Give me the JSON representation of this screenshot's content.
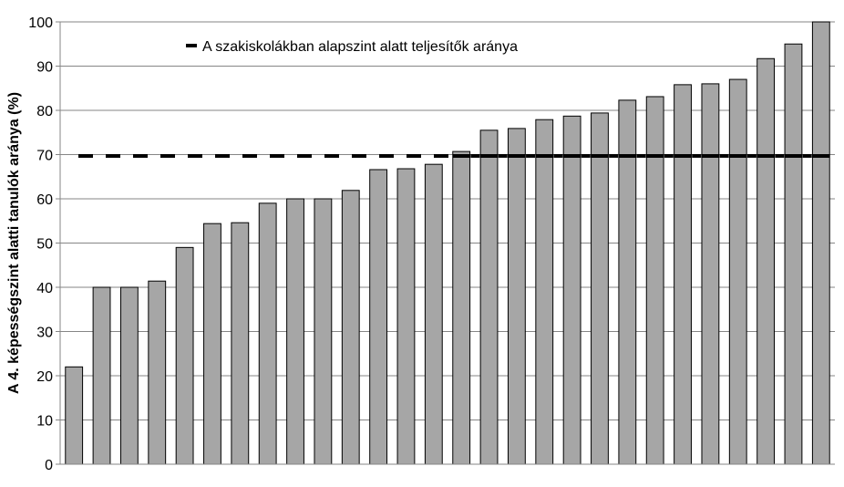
{
  "chart_data": {
    "type": "bar",
    "ylabel": "A 4. képességszint alatti tanulók aránya (%)",
    "xlabel": "",
    "ylim": [
      0,
      100
    ],
    "yticks": [
      0,
      10,
      20,
      30,
      40,
      50,
      60,
      70,
      80,
      90,
      100
    ],
    "grid": true,
    "legend_position": "top",
    "bar_color": "#a6a6a6",
    "series": [
      {
        "values": [
          22,
          40,
          40,
          41.4,
          49,
          54.4,
          54.6,
          59,
          60,
          60,
          61.9,
          66.6,
          66.8,
          67.8,
          70.7,
          75.5,
          75.9,
          77.9,
          78.7,
          79.4,
          82.3,
          83.1,
          85.8,
          86,
          87,
          91.7,
          95,
          100
        ]
      }
    ],
    "reference_line": {
      "value": 69.7,
      "style": "dashed-then-solid",
      "color": "#000000",
      "label": "A szakiskolákban alapszint alatt teljesítők aránya"
    }
  }
}
